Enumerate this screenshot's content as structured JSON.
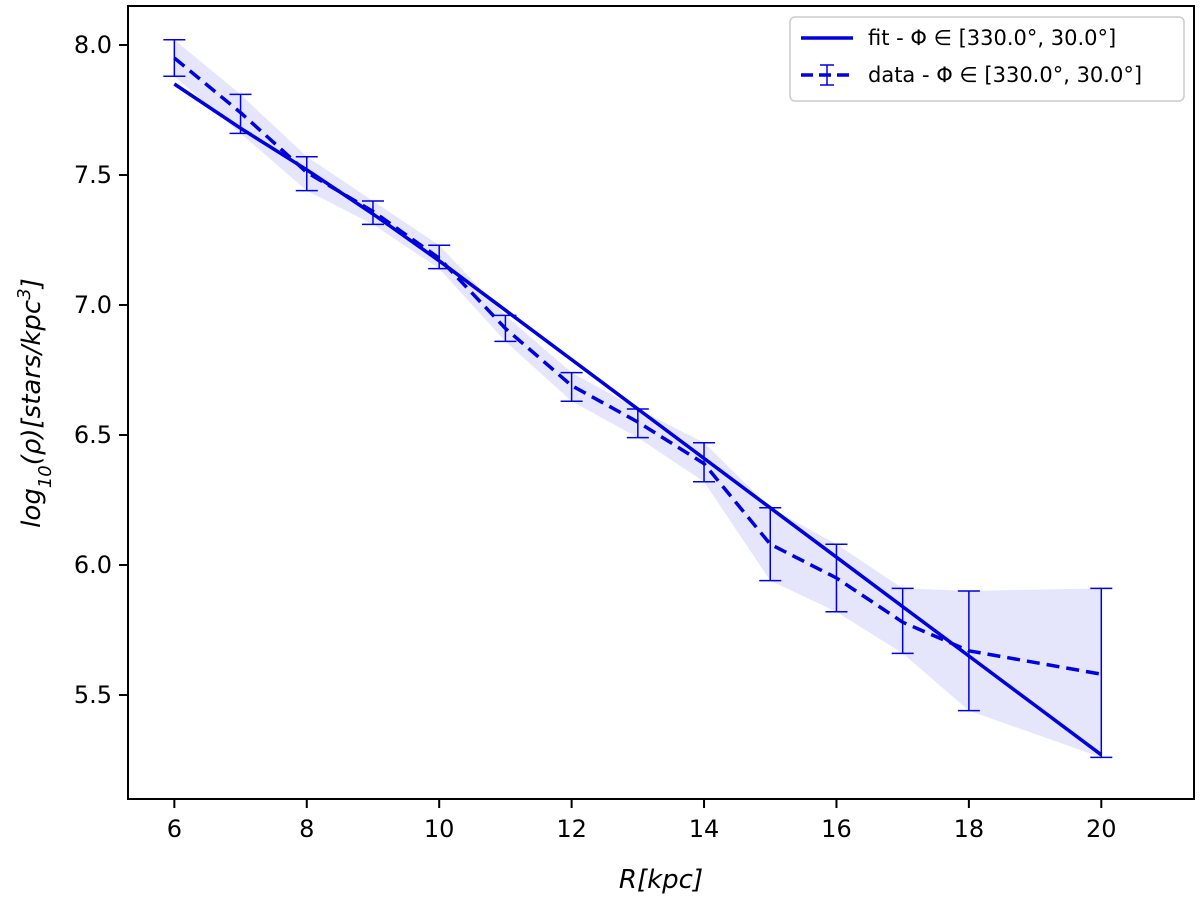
{
  "chart_data": {
    "type": "line",
    "title": "",
    "xlabel": "R[kpc]",
    "ylabel": "log10(ρ)[stars/kpc3]",
    "ylabel_parts": {
      "main": "log",
      "sub": "10",
      "mid": "(ρ)[stars/kpc",
      "sup": "3",
      "end": "]"
    },
    "xlim": [
      5.3,
      21.4
    ],
    "ylim": [
      5.1,
      8.15
    ],
    "xticks": [
      6,
      8,
      10,
      12,
      14,
      16,
      18,
      20
    ],
    "yticks": [
      5.5,
      6.0,
      6.5,
      7.0,
      7.5,
      8.0
    ],
    "xtick_labels": [
      "6",
      "8",
      "10",
      "12",
      "14",
      "16",
      "18",
      "20"
    ],
    "ytick_labels": [
      "5.5",
      "6.0",
      "6.5",
      "7.0",
      "7.5",
      "8.0"
    ],
    "grid": false,
    "legend_placement": "top-right",
    "colors": {
      "line": "#0000dd",
      "band": "#dcdcfa",
      "axis": "#000000"
    },
    "series": [
      {
        "name": "fit - Φ ∈ [330.0°, 30.0°]",
        "style": "solid",
        "x": [
          6,
          7,
          8,
          9,
          10,
          11,
          12,
          13,
          14,
          15,
          16,
          17,
          18,
          19,
          20
        ],
        "y": [
          7.85,
          7.68,
          7.52,
          7.35,
          7.17,
          6.98,
          6.79,
          6.6,
          6.41,
          6.22,
          6.03,
          5.84,
          5.65,
          5.46,
          5.27
        ]
      },
      {
        "name": "data - Φ ∈ [330.0°, 30.0°]",
        "style": "dashed",
        "x": [
          6,
          7,
          8,
          9,
          10,
          11,
          12,
          13,
          14,
          15,
          16,
          17,
          18,
          20
        ],
        "y": [
          7.95,
          7.74,
          7.51,
          7.36,
          7.18,
          6.91,
          6.69,
          6.55,
          6.39,
          6.08,
          5.95,
          5.78,
          5.67,
          5.58
        ],
        "err_low": [
          7.88,
          7.66,
          7.44,
          7.31,
          7.14,
          6.86,
          6.63,
          6.49,
          6.32,
          5.94,
          5.82,
          5.66,
          5.44,
          5.26
        ],
        "err_high": [
          8.02,
          7.81,
          7.57,
          7.4,
          7.23,
          6.96,
          6.74,
          6.6,
          6.47,
          6.22,
          6.08,
          5.91,
          5.9,
          5.91
        ]
      }
    ]
  }
}
